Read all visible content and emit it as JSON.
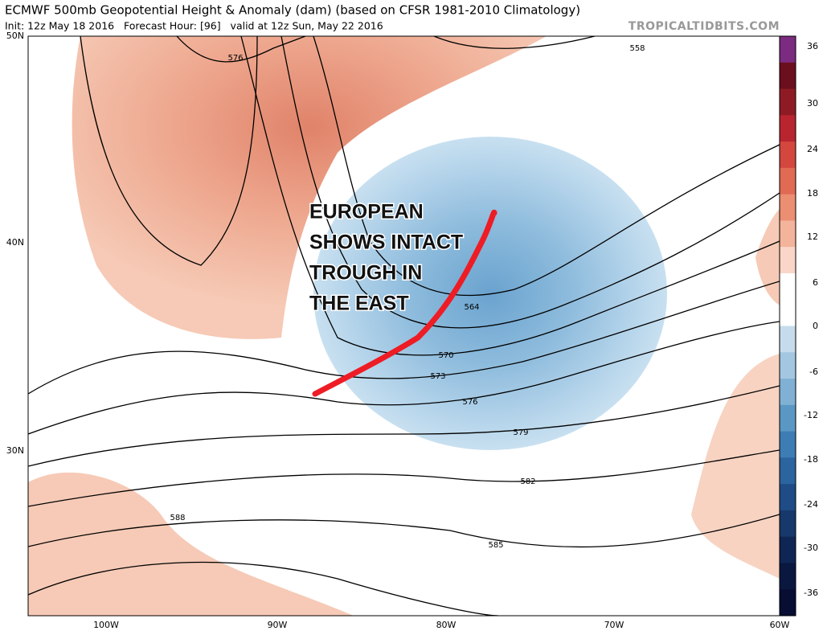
{
  "header": {
    "title": "ECMWF 500mb Geopotential Height & Anomaly (dam) (based on CFSR 1981-2010 Climatology)",
    "subtitle": "Init: 12z May 18 2016   Forecast Hour: [96]   valid at 12z Sun, May 22 2016",
    "credit": "TROPICALTIDBITS.COM"
  },
  "axes": {
    "lat_labels": [
      "50N",
      "40N",
      "30N"
    ],
    "lon_labels": [
      "100W",
      "90W",
      "80W",
      "70W",
      "60W"
    ]
  },
  "colorbar": {
    "labels": [
      "36",
      "30",
      "24",
      "18",
      "12",
      "6",
      "0",
      "-6",
      "-12",
      "-18",
      "-24",
      "-30",
      "-36"
    ]
  },
  "contours": {
    "labels": [
      "576",
      "558",
      "564",
      "570",
      "573",
      "576",
      "579",
      "582",
      "585",
      "588"
    ]
  },
  "annotation": {
    "lines": [
      "EUROPEAN",
      "SHOWS INTACT",
      "TROUGH IN",
      "THE EAST"
    ]
  }
}
